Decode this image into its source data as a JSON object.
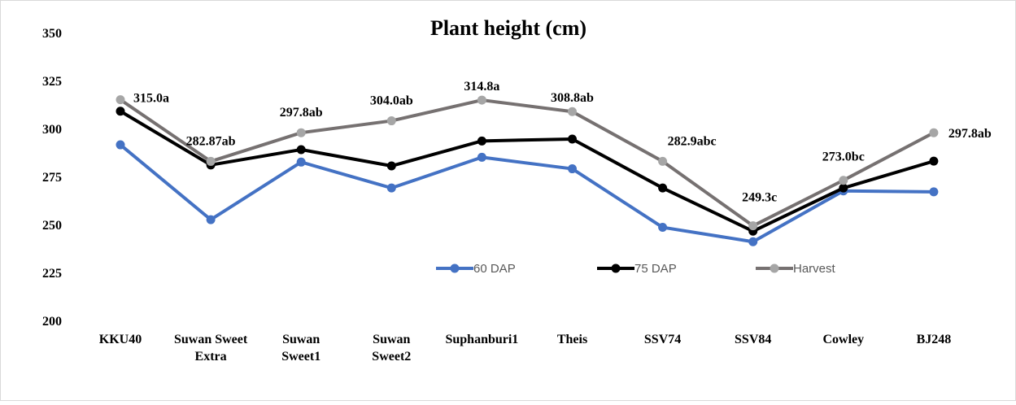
{
  "chart_data": {
    "type": "line",
    "title": "Plant height (cm)",
    "xlabel": "",
    "ylabel": "",
    "ylim": [
      200,
      350
    ],
    "yticks": [
      "200",
      "225",
      "250",
      "275",
      "300",
      "325",
      "350"
    ],
    "grid": false,
    "legend_position": "bottom-center-inside",
    "categories": [
      [
        "KKU40"
      ],
      [
        "Suwan Sweet",
        "Extra"
      ],
      [
        "Suwan",
        "Sweet1"
      ],
      [
        "Suwan",
        "Sweet2"
      ],
      [
        "Suphanburi1"
      ],
      [
        "Theis"
      ],
      [
        "SSV74"
      ],
      [
        "SSV84"
      ],
      [
        "Cowley"
      ],
      [
        "BJ248"
      ]
    ],
    "series": [
      {
        "name": "60 DAP",
        "line_color": "#4472C4",
        "marker_color": "#4472C4",
        "values": [
          291.5,
          252.5,
          282.5,
          269.0,
          285.0,
          279.0,
          248.5,
          241.0,
          267.5,
          267.0
        ]
      },
      {
        "name": "75 DAP",
        "line_color": "#000000",
        "marker_color": "#000000",
        "values": [
          309.0,
          281.0,
          289.0,
          280.5,
          293.5,
          294.5,
          269.0,
          246.5,
          269.0,
          283.0
        ]
      },
      {
        "name": "Harvest",
        "line_color": "#767171",
        "marker_color": "#A6A6A6",
        "values": [
          315.0,
          282.87,
          297.8,
          304.0,
          314.8,
          308.8,
          282.9,
          249.3,
          273.0,
          297.8
        ]
      }
    ],
    "data_labels": [
      "315.0a",
      "282.87ab",
      "297.8ab",
      "304.0ab",
      "314.8a",
      "308.8ab",
      "282.9abc",
      "249.3c",
      "273.0bc",
      "297.8ab"
    ]
  }
}
